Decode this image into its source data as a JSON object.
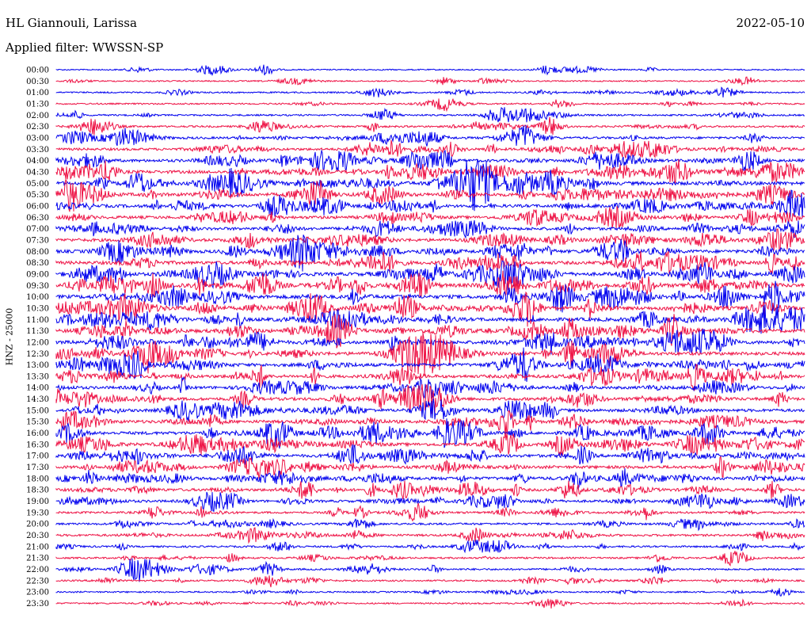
{
  "header": {
    "station": "HL Giannouli, Larissa",
    "date": "2022-05-10",
    "filter": "Applied filter: WWSSN-SP"
  },
  "chart_data": {
    "type": "line",
    "title": "HL Giannouli, Larissa",
    "subtitle": "Applied filter: WWSSN-SP",
    "ylabel": "HNZ - 25000",
    "xlabel": "",
    "series_colors": [
      "#0000ee",
      "#ee1144"
    ],
    "traces": [
      {
        "label": "00:00",
        "activity": 0.1
      },
      {
        "label": "00:30",
        "activity": 0.12
      },
      {
        "label": "01:00",
        "activity": 0.18
      },
      {
        "label": "01:30",
        "activity": 0.2
      },
      {
        "label": "02:00",
        "activity": 0.25
      },
      {
        "label": "02:30",
        "activity": 0.35
      },
      {
        "label": "03:00",
        "activity": 0.5
      },
      {
        "label": "03:30",
        "activity": 0.55
      },
      {
        "label": "04:00",
        "activity": 0.7
      },
      {
        "label": "04:30",
        "activity": 0.8
      },
      {
        "label": "05:00",
        "activity": 1.0
      },
      {
        "label": "05:30",
        "activity": 0.9
      },
      {
        "label": "06:00",
        "activity": 0.8
      },
      {
        "label": "06:30",
        "activity": 0.75
      },
      {
        "label": "07:00",
        "activity": 0.75
      },
      {
        "label": "07:30",
        "activity": 0.8
      },
      {
        "label": "08:00",
        "activity": 0.85
      },
      {
        "label": "08:30",
        "activity": 0.85
      },
      {
        "label": "09:00",
        "activity": 0.9
      },
      {
        "label": "09:30",
        "activity": 0.95
      },
      {
        "label": "10:00",
        "activity": 1.0
      },
      {
        "label": "10:30",
        "activity": 0.95
      },
      {
        "label": "11:00",
        "activity": 0.95
      },
      {
        "label": "11:30",
        "activity": 0.9
      },
      {
        "label": "12:00",
        "activity": 0.9
      },
      {
        "label": "12:30",
        "activity": 0.9
      },
      {
        "label": "13:00",
        "activity": 0.85
      },
      {
        "label": "13:30",
        "activity": 0.8
      },
      {
        "label": "14:00",
        "activity": 0.7
      },
      {
        "label": "14:30",
        "activity": 0.75
      },
      {
        "label": "15:00",
        "activity": 0.75
      },
      {
        "label": "15:30",
        "activity": 0.8
      },
      {
        "label": "16:00",
        "activity": 0.8
      },
      {
        "label": "16:30",
        "activity": 0.8
      },
      {
        "label": "17:00",
        "activity": 0.75
      },
      {
        "label": "17:30",
        "activity": 0.75
      },
      {
        "label": "18:00",
        "activity": 0.8
      },
      {
        "label": "18:30",
        "activity": 0.65
      },
      {
        "label": "19:00",
        "activity": 0.55
      },
      {
        "label": "19:30",
        "activity": 0.4
      },
      {
        "label": "20:00",
        "activity": 0.4
      },
      {
        "label": "20:30",
        "activity": 0.45
      },
      {
        "label": "21:00",
        "activity": 0.3
      },
      {
        "label": "21:30",
        "activity": 0.28
      },
      {
        "label": "22:00",
        "activity": 0.32
      },
      {
        "label": "22:30",
        "activity": 0.25
      },
      {
        "label": "23:00",
        "activity": 0.2
      },
      {
        "label": "23:30",
        "activity": 0.2
      }
    ],
    "grid": false,
    "legend": "none"
  }
}
